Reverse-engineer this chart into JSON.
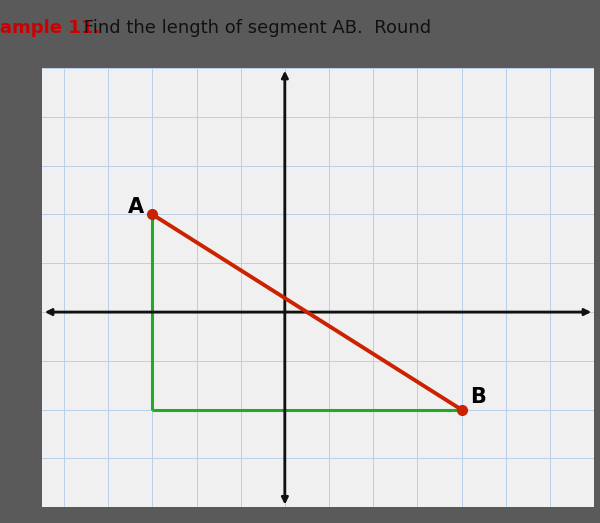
{
  "point_A": [
    -3,
    2
  ],
  "point_B": [
    4,
    -2
  ],
  "title_text": "ample 11.  Find the length of segment AB.  Round",
  "title_color_bold": "#cc0000",
  "title_color_normal": "#111111",
  "grid_color": "#b8cfe8",
  "plot_bg_color": "#f0f0f0",
  "outer_bg_color": "#5a5a5a",
  "top_bar_color": "#c8c8c8",
  "line_AB_color": "#cc2200",
  "right_angle_color": "#22aa22",
  "point_color": "#cc2200",
  "label_A": "A",
  "label_B": "B",
  "xlim": [
    -5.5,
    7
  ],
  "ylim": [
    -4,
    5
  ],
  "xlabel": "",
  "ylabel": "",
  "figsize": [
    6.0,
    5.23
  ],
  "dpi": 100,
  "axis_color": "#111111",
  "font_size_label": 15,
  "title_fontsize": 13
}
